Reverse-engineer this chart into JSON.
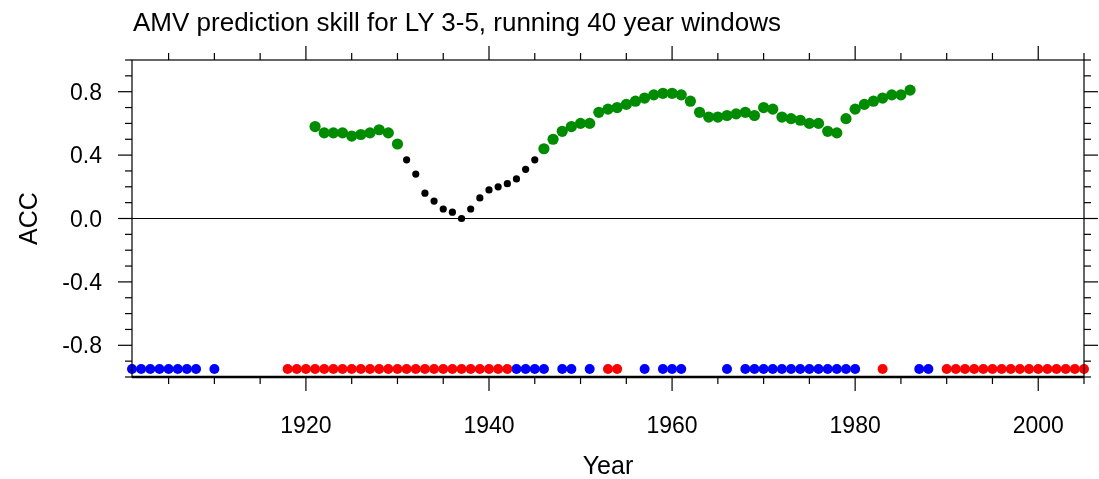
{
  "chart_data": {
    "type": "scatter",
    "title": "AMV prediction skill for LY 3-5, running 40 year windows",
    "xlabel": "Year",
    "ylabel": "ACC",
    "xlim": [
      1901,
      2005
    ],
    "xticks": [
      {
        "value": 1905,
        "label": null
      },
      {
        "value": 1910,
        "label": null
      },
      {
        "value": 1915,
        "label": null
      },
      1920,
      {
        "value": 1925,
        "label": null
      },
      {
        "value": 1930,
        "label": null
      },
      {
        "value": 1935,
        "label": null
      },
      1940,
      {
        "value": 1945,
        "label": null
      },
      {
        "value": 1950,
        "label": null
      },
      {
        "value": 1955,
        "label": null
      },
      1960,
      {
        "value": 1965,
        "label": null
      },
      {
        "value": 1970,
        "label": null
      },
      {
        "value": 1975,
        "label": null
      },
      1980,
      {
        "value": 1985,
        "label": null
      },
      {
        "value": 1990,
        "label": null
      },
      {
        "value": 1995,
        "label": null
      },
      2000,
      {
        "value": 2005,
        "label": null
      }
    ],
    "ylim": [
      -1,
      1
    ],
    "yticks": [
      {
        "value": -1,
        "label": null
      },
      {
        "value": -0.9,
        "label": null
      },
      -0.8,
      {
        "value": -0.7,
        "label": null
      },
      {
        "value": -0.6,
        "label": null
      },
      {
        "value": -0.5,
        "label": null
      },
      -0.4,
      {
        "value": -0.3,
        "label": null
      },
      {
        "value": -0.2,
        "label": null
      },
      {
        "value": -0.1,
        "label": null
      },
      {
        "value": 0,
        "label": "0.0"
      },
      {
        "value": 0.1,
        "label": null
      },
      {
        "value": 0.2,
        "label": null
      },
      {
        "value": 0.3,
        "label": null
      },
      0.4,
      {
        "value": 0.5,
        "label": null
      },
      {
        "value": 0.6,
        "label": null
      },
      {
        "value": 0.7,
        "label": null
      },
      0.8,
      {
        "value": 0.9,
        "label": null
      },
      {
        "value": 1,
        "label": null
      }
    ],
    "marker": "circle",
    "ref_lines": [
      {
        "axis": "y",
        "value": 0
      }
    ],
    "series": [
      {
        "color": "#008c00",
        "x": [
          1921,
          1922,
          1923,
          1924,
          1925,
          1926,
          1927,
          1928,
          1929,
          1930,
          1946,
          1947,
          1948,
          1949,
          1950,
          1951,
          1952,
          1953,
          1954,
          1955,
          1956,
          1957,
          1958,
          1959,
          1960,
          1961,
          1962,
          1963,
          1964,
          1965,
          1966,
          1967,
          1968,
          1969,
          1970,
          1971,
          1972,
          1973,
          1974,
          1975,
          1976,
          1977,
          1978,
          1979,
          1980,
          1981,
          1982,
          1983,
          1984,
          1985,
          1986
        ],
        "values": [
          0.58,
          0.54,
          0.54,
          0.54,
          0.52,
          0.53,
          0.54,
          0.56,
          0.54,
          0.47,
          0.44,
          0.5,
          0.55,
          0.58,
          0.6,
          0.6,
          0.67,
          0.69,
          0.7,
          0.72,
          0.74,
          0.76,
          0.78,
          0.79,
          0.79,
          0.78,
          0.74,
          0.67,
          0.64,
          0.64,
          0.65,
          0.66,
          0.67,
          0.65,
          0.7,
          0.69,
          0.64,
          0.63,
          0.62,
          0.6,
          0.6,
          0.55,
          0.54,
          0.63,
          0.69,
          0.72,
          0.74,
          0.76,
          0.78,
          0.78,
          0.81
        ]
      },
      {
        "color": "#000000",
        "x": [
          1931,
          1932,
          1933,
          1934,
          1935,
          1936,
          1937,
          1938,
          1939,
          1940,
          1941,
          1942,
          1943,
          1944,
          1945
        ],
        "values": [
          0.37,
          0.28,
          0.16,
          0.11,
          0.06,
          0.04,
          0.0,
          0.06,
          0.13,
          0.18,
          0.2,
          0.22,
          0.25,
          0.31,
          0.37
        ]
      },
      {
        "color": "#0000ff",
        "x": [
          1901,
          1902,
          1903,
          1904,
          1905,
          1906,
          1907,
          1908,
          1910,
          1943,
          1944,
          1945,
          1946,
          1948,
          1949,
          1951,
          1957,
          1959,
          1960,
          1961,
          1966,
          1968,
          1969,
          1970,
          1971,
          1972,
          1973,
          1974,
          1975,
          1976,
          1977,
          1978,
          1979,
          1980,
          1987,
          1988
        ],
        "values": [
          -0.95,
          -0.95,
          -0.95,
          -0.95,
          -0.95,
          -0.95,
          -0.95,
          -0.95,
          -0.95,
          -0.95,
          -0.95,
          -0.95,
          -0.95,
          -0.95,
          -0.95,
          -0.95,
          -0.95,
          -0.95,
          -0.95,
          -0.95,
          -0.95,
          -0.95,
          -0.95,
          -0.95,
          -0.95,
          -0.95,
          -0.95,
          -0.95,
          -0.95,
          -0.95,
          -0.95,
          -0.95,
          -0.95,
          -0.95,
          -0.95,
          -0.95
        ]
      },
      {
        "color": "#ff0000",
        "x": [
          1918,
          1919,
          1920,
          1921,
          1922,
          1923,
          1924,
          1925,
          1926,
          1927,
          1928,
          1929,
          1930,
          1931,
          1932,
          1933,
          1934,
          1935,
          1936,
          1937,
          1938,
          1939,
          1940,
          1941,
          1942,
          1953,
          1954,
          1983,
          1990,
          1991,
          1992,
          1993,
          1994,
          1995,
          1996,
          1997,
          1998,
          1999,
          2000,
          2001,
          2002,
          2003,
          2004,
          2005
        ],
        "values": [
          -0.95,
          -0.95,
          -0.95,
          -0.95,
          -0.95,
          -0.95,
          -0.95,
          -0.95,
          -0.95,
          -0.95,
          -0.95,
          -0.95,
          -0.95,
          -0.95,
          -0.95,
          -0.95,
          -0.95,
          -0.95,
          -0.95,
          -0.95,
          -0.95,
          -0.95,
          -0.95,
          -0.95,
          -0.95,
          -0.95,
          -0.95,
          -0.95,
          -0.95,
          -0.95,
          -0.95,
          -0.95,
          -0.95,
          -0.95,
          -0.95,
          -0.95,
          -0.95,
          -0.95,
          -0.95,
          -0.95,
          -0.95,
          -0.95,
          -0.95,
          -0.95
        ]
      }
    ]
  }
}
